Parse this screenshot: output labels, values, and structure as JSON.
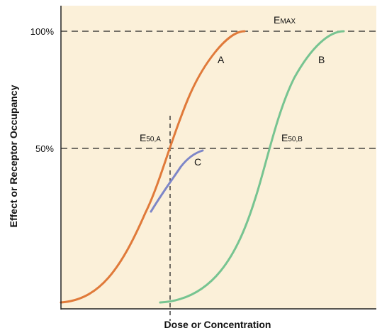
{
  "chart_data": {
    "type": "line",
    "title": "",
    "xlabel": "Dose or Concentration",
    "ylabel": "Effect or Receptor Occupancy",
    "x_scale": "log",
    "ylim": [
      0,
      100
    ],
    "y_ticks": [
      {
        "value": 50,
        "label": "50%"
      },
      {
        "value": 100,
        "label": "100%"
      }
    ],
    "reference_lines": [
      {
        "orientation": "horizontal",
        "value": 100,
        "style": "dashed"
      },
      {
        "orientation": "horizontal",
        "value": 50,
        "style": "dashed"
      },
      {
        "orientation": "vertical",
        "at": "E50,A",
        "style": "dashed"
      }
    ],
    "series": [
      {
        "name": "A",
        "color": "#e07a3a",
        "shape": "sigmoid",
        "max_effect": 100
      },
      {
        "name": "B",
        "color": "#77c491",
        "shape": "sigmoid",
        "max_effect": 100
      },
      {
        "name": "C",
        "color": "#7d86c8",
        "shape": "partial",
        "max_effect": 50
      }
    ],
    "annotations": [
      {
        "main": "E",
        "sub": "MAX",
        "refers_to": "maximum effect"
      },
      {
        "main": "E",
        "sub": "50,A",
        "refers_to": "A"
      },
      {
        "main": "E",
        "sub": "50,B",
        "refers_to": "B"
      }
    ],
    "grid": false,
    "background_color": "#fbf0d9"
  }
}
